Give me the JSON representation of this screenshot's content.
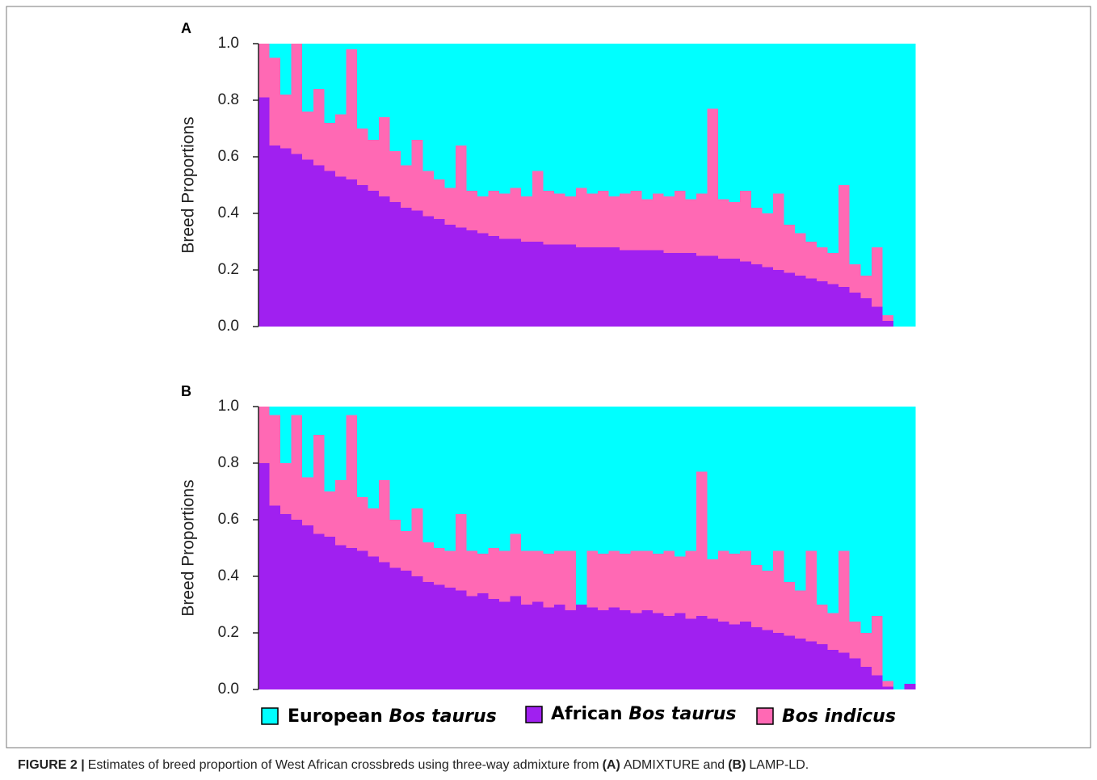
{
  "chart_data": [
    {
      "type": "bar",
      "stacked": true,
      "panel_label": "A",
      "ylabel": "Breed Proportions",
      "ylim": [
        0,
        1
      ],
      "yticks": [
        {
          "value": 0,
          "label": "0.0"
        },
        {
          "value": 0.2,
          "label": "0.2"
        },
        {
          "value": 0.4,
          "label": "0.4"
        },
        {
          "value": 0.6,
          "label": "0.6"
        },
        {
          "value": 0.8,
          "label": "0.8"
        },
        {
          "value": 1,
          "label": "1.0"
        }
      ],
      "categories": [
        null,
        null,
        null,
        null,
        null,
        null,
        null,
        null,
        null,
        null,
        null,
        null,
        null,
        null,
        null,
        null,
        null,
        null,
        null,
        null,
        null,
        null,
        null,
        null,
        null,
        null,
        null,
        null,
        null,
        null,
        null,
        null,
        null,
        null,
        null,
        null,
        null,
        null,
        null,
        null,
        null,
        null,
        null,
        null,
        null,
        null,
        null,
        null,
        null,
        null,
        null,
        null,
        null,
        null,
        null,
        null,
        null,
        null,
        null,
        null
      ],
      "series": [
        {
          "name": "African Bos taurus",
          "color": "#a020f0",
          "values": [
            0.81,
            0.64,
            0.63,
            0.61,
            0.59,
            0.57,
            0.55,
            0.53,
            0.52,
            0.5,
            0.48,
            0.46,
            0.44,
            0.42,
            0.41,
            0.39,
            0.38,
            0.36,
            0.35,
            0.34,
            0.33,
            0.32,
            0.31,
            0.31,
            0.3,
            0.3,
            0.29,
            0.29,
            0.29,
            0.28,
            0.28,
            0.28,
            0.28,
            0.27,
            0.27,
            0.27,
            0.27,
            0.26,
            0.26,
            0.26,
            0.25,
            0.25,
            0.24,
            0.24,
            0.23,
            0.22,
            0.21,
            0.2,
            0.19,
            0.18,
            0.17,
            0.16,
            0.15,
            0.14,
            0.12,
            0.1,
            0.07,
            0.02,
            0,
            0
          ]
        },
        {
          "name": "Bos indicus",
          "color": "#ff69b4",
          "values": [
            0.19,
            0.31,
            0.19,
            0.39,
            0.17,
            0.27,
            0.17,
            0.22,
            0.46,
            0.2,
            0.18,
            0.28,
            0.18,
            0.15,
            0.25,
            0.16,
            0.14,
            0.13,
            0.29,
            0.14,
            0.13,
            0.16,
            0.16,
            0.18,
            0.16,
            0.25,
            0.19,
            0.18,
            0.17,
            0.21,
            0.19,
            0.2,
            0.18,
            0.2,
            0.21,
            0.18,
            0.2,
            0.2,
            0.22,
            0.19,
            0.22,
            0.52,
            0.21,
            0.2,
            0.25,
            0.2,
            0.19,
            0.27,
            0.17,
            0.15,
            0.13,
            0.12,
            0.11,
            0.36,
            0.1,
            0.08,
            0.21,
            0.02,
            0,
            0
          ]
        },
        {
          "name": "European Bos taurus",
          "color": "#00ffff",
          "values": [
            0,
            0.05,
            0.18,
            0,
            0.24,
            0.16,
            0.28,
            0.25,
            0.02,
            0.3,
            0.34,
            0.26,
            0.38,
            0.43,
            0.34,
            0.45,
            0.48,
            0.51,
            0.36,
            0.52,
            0.54,
            0.52,
            0.53,
            0.51,
            0.54,
            0.45,
            0.52,
            0.53,
            0.54,
            0.51,
            0.53,
            0.52,
            0.54,
            0.53,
            0.52,
            0.55,
            0.53,
            0.54,
            0.52,
            0.55,
            0.53,
            0.23,
            0.55,
            0.56,
            0.52,
            0.58,
            0.6,
            0.53,
            0.64,
            0.67,
            0.7,
            0.72,
            0.74,
            0.5,
            0.78,
            0.82,
            0.72,
            0.96,
            1,
            1
          ]
        }
      ]
    },
    {
      "type": "bar",
      "stacked": true,
      "panel_label": "B",
      "ylabel": "Breed Proportions",
      "ylim": [
        0,
        1
      ],
      "yticks": [
        {
          "value": 0,
          "label": "0.0"
        },
        {
          "value": 0.2,
          "label": "0.2"
        },
        {
          "value": 0.4,
          "label": "0.4"
        },
        {
          "value": 0.6,
          "label": "0.6"
        },
        {
          "value": 0.8,
          "label": "0.8"
        },
        {
          "value": 1,
          "label": "1.0"
        }
      ],
      "categories": [
        null,
        null,
        null,
        null,
        null,
        null,
        null,
        null,
        null,
        null,
        null,
        null,
        null,
        null,
        null,
        null,
        null,
        null,
        null,
        null,
        null,
        null,
        null,
        null,
        null,
        null,
        null,
        null,
        null,
        null,
        null,
        null,
        null,
        null,
        null,
        null,
        null,
        null,
        null,
        null,
        null,
        null,
        null,
        null,
        null,
        null,
        null,
        null,
        null,
        null,
        null,
        null,
        null,
        null,
        null,
        null,
        null,
        null,
        null,
        null
      ],
      "series": [
        {
          "name": "African Bos taurus",
          "color": "#a020f0",
          "values": [
            0.8,
            0.65,
            0.62,
            0.6,
            0.58,
            0.55,
            0.54,
            0.51,
            0.5,
            0.49,
            0.47,
            0.45,
            0.43,
            0.42,
            0.4,
            0.38,
            0.37,
            0.36,
            0.35,
            0.33,
            0.34,
            0.32,
            0.31,
            0.33,
            0.3,
            0.31,
            0.29,
            0.3,
            0.28,
            0.3,
            0.29,
            0.28,
            0.29,
            0.28,
            0.27,
            0.28,
            0.27,
            0.26,
            0.27,
            0.25,
            0.26,
            0.25,
            0.24,
            0.23,
            0.24,
            0.22,
            0.21,
            0.2,
            0.19,
            0.18,
            0.17,
            0.16,
            0.14,
            0.13,
            0.11,
            0.08,
            0.05,
            0.01,
            0,
            0.02
          ]
        },
        {
          "name": "Bos indicus",
          "color": "#ff69b4",
          "values": [
            0.2,
            0.32,
            0.18,
            0.37,
            0.17,
            0.35,
            0.16,
            0.23,
            0.47,
            0.19,
            0.17,
            0.29,
            0.17,
            0.14,
            0.24,
            0.14,
            0.13,
            0.13,
            0.27,
            0.16,
            0.14,
            0.18,
            0.18,
            0.22,
            0.19,
            0.18,
            0.19,
            0.19,
            0.21,
            0,
            0.2,
            0.2,
            0.2,
            0.2,
            0.22,
            0.21,
            0.21,
            0.23,
            0.2,
            0.24,
            0.51,
            0.21,
            0.25,
            0.25,
            0.25,
            0.22,
            0.21,
            0.29,
            0.19,
            0.17,
            0.32,
            0.14,
            0.13,
            0.36,
            0.13,
            0.12,
            0.21,
            0.02,
            0,
            0
          ]
        },
        {
          "name": "European Bos taurus",
          "color": "#00ffff",
          "values": [
            0,
            0.03,
            0.2,
            0.03,
            0.25,
            0.1,
            0.3,
            0.26,
            0.03,
            0.32,
            0.36,
            0.26,
            0.4,
            0.44,
            0.36,
            0.48,
            0.5,
            0.51,
            0.38,
            0.51,
            0.52,
            0.5,
            0.51,
            0.45,
            0.51,
            0.51,
            0.52,
            0.51,
            0.51,
            0.7,
            0.51,
            0.52,
            0.51,
            0.52,
            0.51,
            0.51,
            0.52,
            0.51,
            0.53,
            0.51,
            0.23,
            0.54,
            0.51,
            0.52,
            0.51,
            0.56,
            0.58,
            0.51,
            0.62,
            0.65,
            0.51,
            0.7,
            0.73,
            0.51,
            0.76,
            0.8,
            0.74,
            0.97,
            1,
            0.98
          ]
        }
      ]
    }
  ],
  "caption": [
    "FIGURE 2 |",
    "Estimates of breed proportion of West African crossbreds using three-way admixture from",
    "(A)",
    "ADMIXTURE and",
    "(B)",
    "LAMP-LD."
  ]
}
